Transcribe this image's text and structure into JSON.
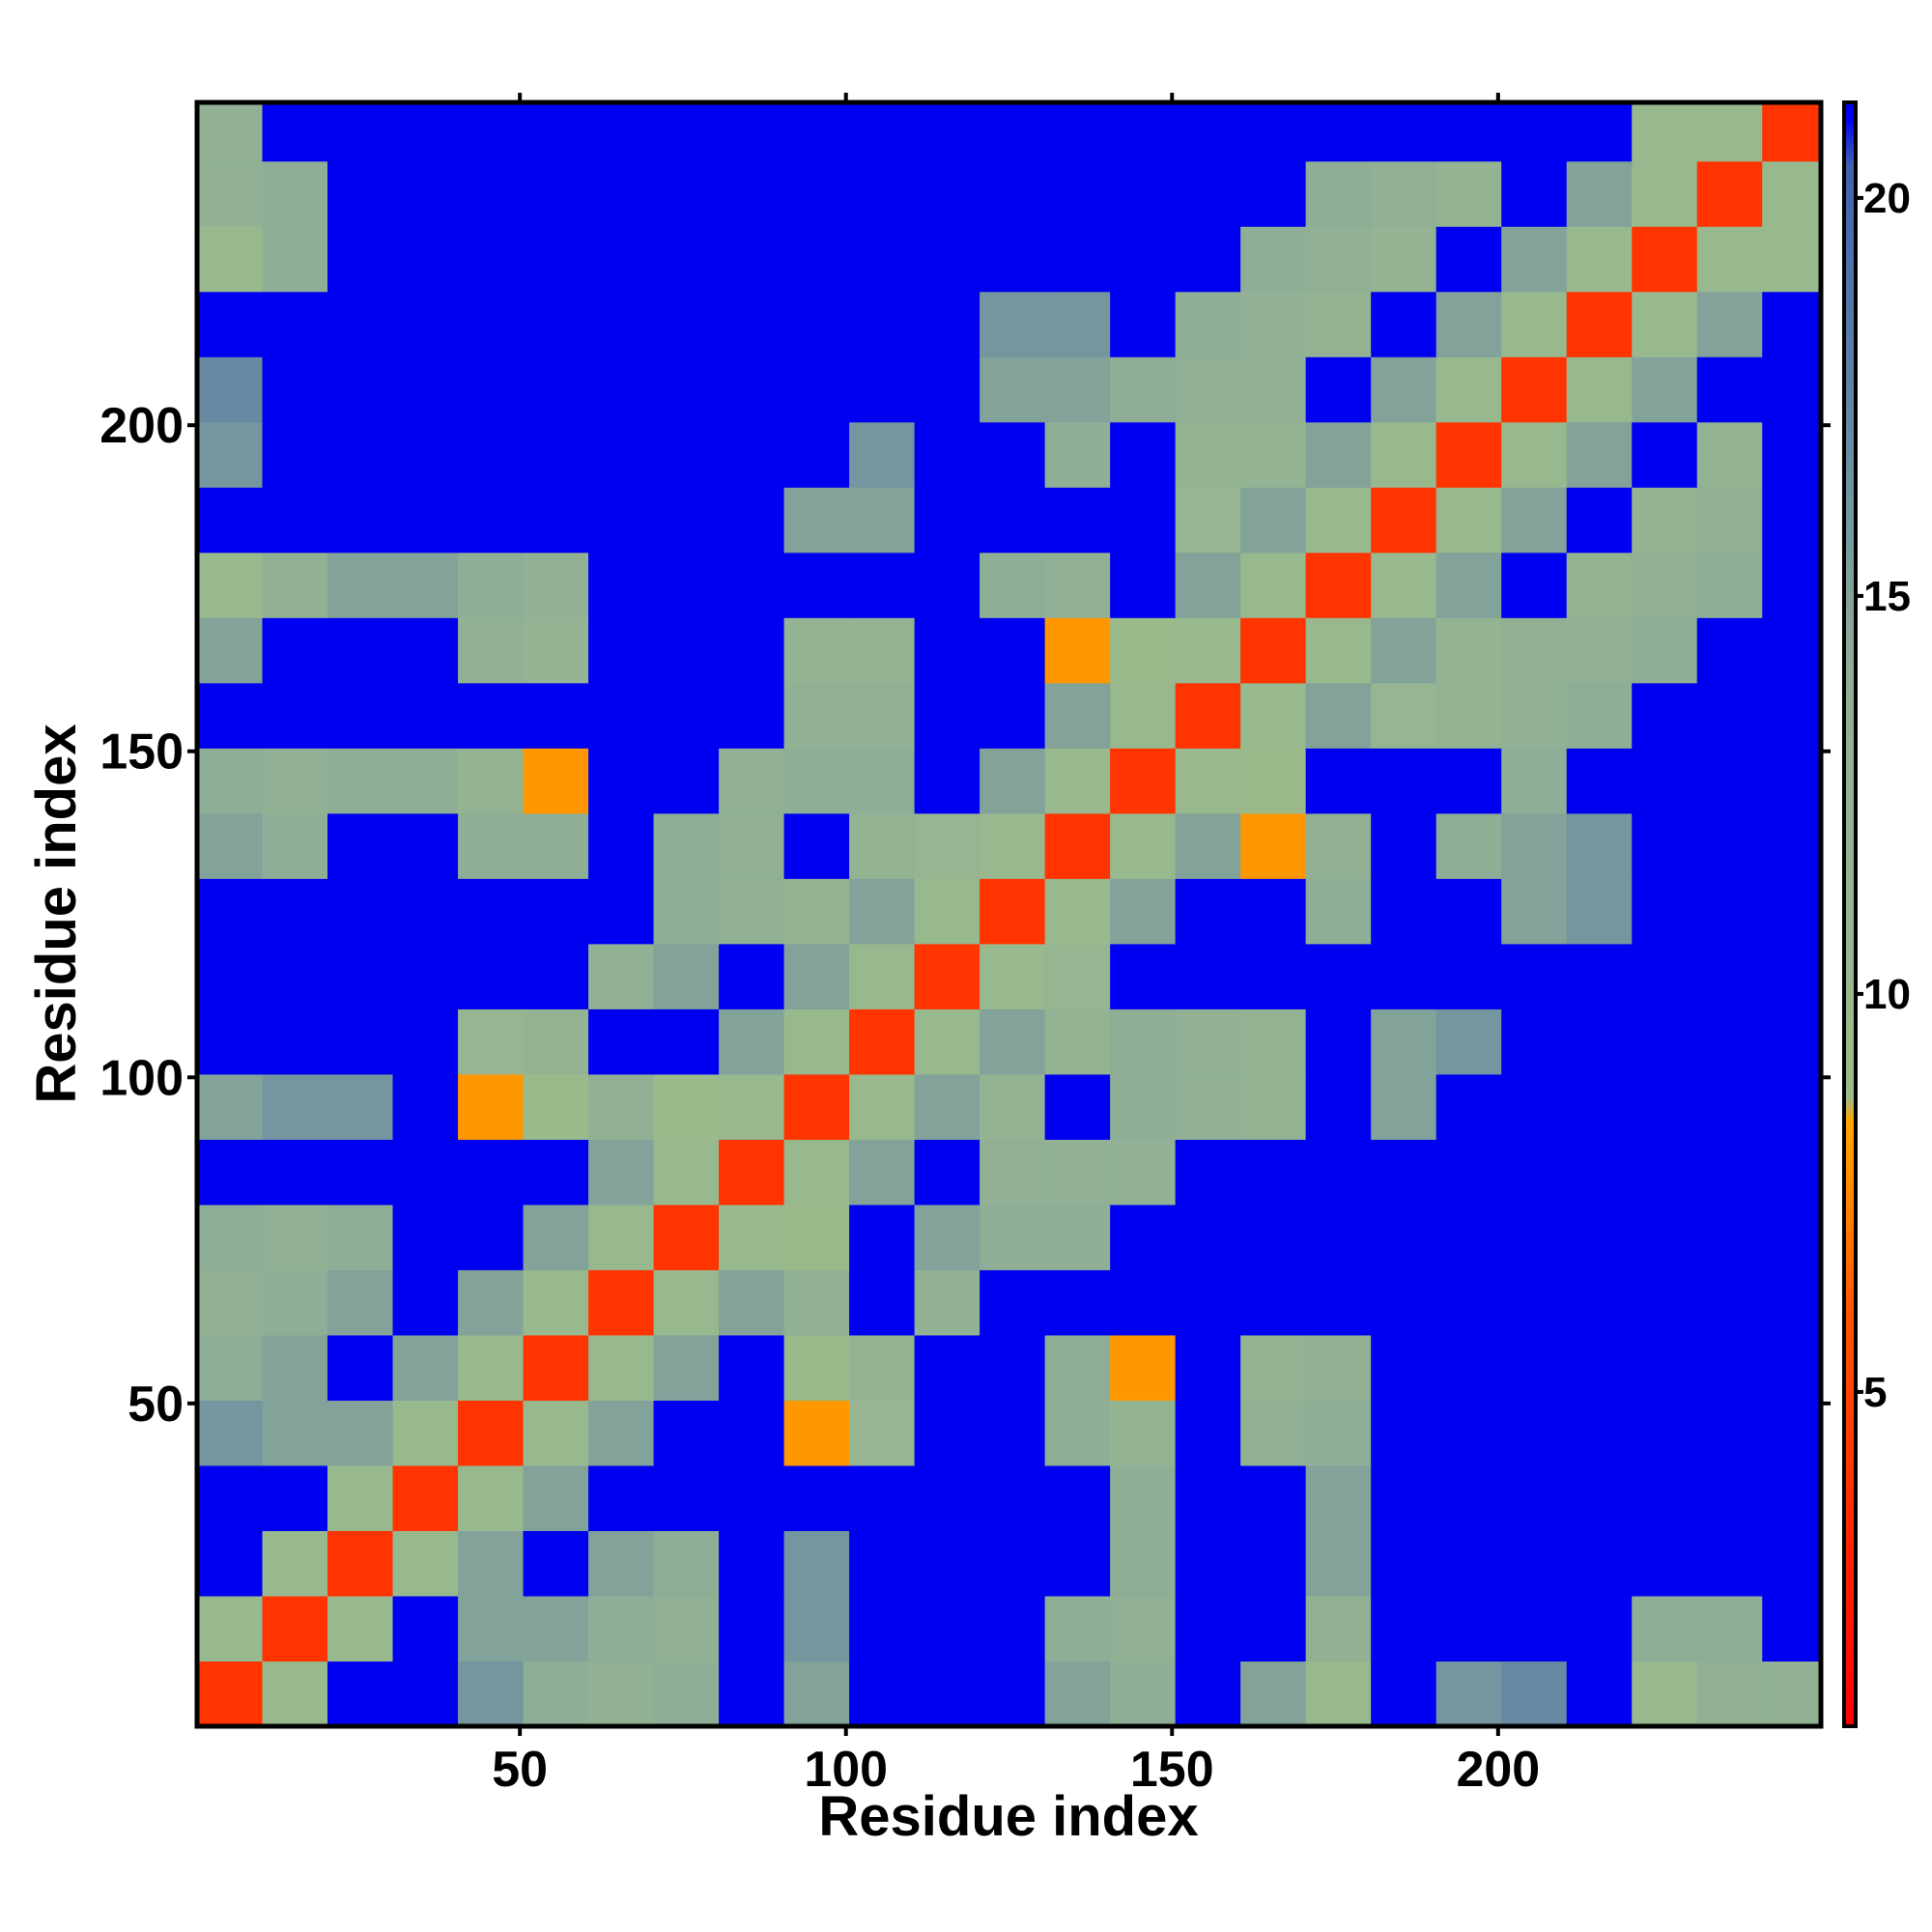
{
  "chart_data": {
    "type": "heatmap",
    "xlabel": "Residue index",
    "ylabel": "Residue index",
    "xlim": [
      0.5,
      249.5
    ],
    "ylim": [
      0.5,
      249.5
    ],
    "xticks": [
      50,
      100,
      150,
      200
    ],
    "yticks": [
      50,
      100,
      150,
      200
    ],
    "xbins": [
      0.5,
      10.5,
      20.5,
      30.5,
      40.5,
      50.5,
      60.5,
      70.5,
      80.5,
      90.5,
      100.5,
      110.5,
      120.5,
      130.5,
      140.5,
      150.5,
      160.5,
      170.5,
      180.5,
      190.5,
      200.5,
      210.5,
      220.5,
      230.5,
      240.5,
      250.5
    ],
    "ybins": [
      0.5,
      10.5,
      20.5,
      30.5,
      40.5,
      50.5,
      60.5,
      70.5,
      80.5,
      90.5,
      100.5,
      110.5,
      120.5,
      130.5,
      140.5,
      150.5,
      160.5,
      170.5,
      180.5,
      190.5,
      200.5,
      210.5,
      220.5,
      230.5,
      240.5,
      250.5
    ],
    "clim": [
      0.8,
      21.2
    ],
    "cticks": [
      5,
      10,
      15,
      20
    ],
    "colorscale": [
      [
        0.8,
        "#ff0000"
      ],
      [
        6,
        "#ff5500"
      ],
      [
        8.4,
        "#ffa500"
      ],
      [
        8.7,
        "#9bbb8b"
      ],
      [
        14,
        "#8fae96"
      ],
      [
        18,
        "#5a7ea6"
      ],
      [
        20.4,
        "#3f62b0"
      ],
      [
        21,
        "#0000f0"
      ]
    ],
    "values": [
      [
        4,
        10,
        21,
        21,
        16,
        14,
        13,
        14,
        21,
        15,
        21,
        21,
        21,
        15,
        14,
        21,
        15,
        10,
        21,
        16,
        17,
        21,
        10,
        13,
        13
      ],
      [
        10,
        4,
        10,
        21,
        15,
        15,
        14,
        13,
        21,
        16,
        21,
        21,
        21,
        14,
        13,
        21,
        21,
        13,
        21,
        21,
        21,
        21,
        14,
        14,
        21
      ],
      [
        21,
        10,
        4,
        10,
        15,
        21,
        15,
        14,
        21,
        16,
        21,
        21,
        21,
        21,
        14,
        21,
        21,
        15,
        21,
        21,
        21,
        21,
        21,
        21,
        21
      ],
      [
        21,
        21,
        10,
        4,
        10,
        15,
        21,
        21,
        21,
        21,
        21,
        21,
        21,
        21,
        14,
        21,
        21,
        15,
        21,
        21,
        21,
        21,
        21,
        21,
        21
      ],
      [
        16,
        15,
        15,
        10,
        4,
        10,
        15,
        21,
        21,
        8,
        11,
        21,
        21,
        14,
        12,
        21,
        13,
        14,
        21,
        21,
        21,
        21,
        21,
        21,
        21
      ],
      [
        14,
        15,
        21,
        15,
        10,
        4,
        10,
        15,
        21,
        9,
        12,
        21,
        21,
        14,
        8,
        21,
        12,
        13,
        21,
        21,
        21,
        21,
        21,
        21,
        21
      ],
      [
        13,
        14,
        15,
        21,
        15,
        10,
        4,
        10,
        15,
        13,
        21,
        13,
        21,
        21,
        21,
        21,
        21,
        21,
        21,
        21,
        21,
        21,
        21,
        21,
        21
      ],
      [
        14,
        13,
        14,
        21,
        21,
        15,
        10,
        4,
        10,
        9,
        21,
        15,
        14,
        14,
        21,
        21,
        21,
        21,
        21,
        21,
        21,
        21,
        21,
        21,
        21
      ],
      [
        21,
        21,
        21,
        21,
        21,
        21,
        15,
        10,
        4,
        10,
        15,
        21,
        13,
        13,
        13,
        21,
        21,
        21,
        21,
        21,
        21,
        21,
        21,
        21,
        21
      ],
      [
        15,
        16,
        16,
        21,
        8,
        9,
        13,
        9,
        10,
        4,
        10,
        15,
        12,
        21,
        14,
        13,
        12,
        21,
        15,
        21,
        21,
        21,
        21,
        21,
        21
      ],
      [
        21,
        21,
        21,
        21,
        11,
        12,
        21,
        21,
        15,
        10,
        4,
        10,
        15,
        12,
        14,
        13,
        12,
        21,
        15,
        16,
        21,
        21,
        21,
        21,
        21
      ],
      [
        21,
        21,
        21,
        21,
        21,
        21,
        13,
        15,
        21,
        15,
        10,
        4,
        10,
        11,
        21,
        21,
        21,
        21,
        21,
        21,
        21,
        21,
        21,
        21,
        21
      ],
      [
        21,
        21,
        21,
        21,
        21,
        21,
        21,
        14,
        13,
        12,
        15,
        10,
        4,
        10,
        15,
        21,
        21,
        14,
        21,
        21,
        15,
        16,
        21,
        21,
        21
      ],
      [
        15,
        14,
        21,
        21,
        14,
        14,
        21,
        14,
        13,
        21,
        12,
        11,
        10,
        4,
        10,
        15,
        8,
        13,
        21,
        14,
        15,
        16,
        21,
        21,
        21
      ],
      [
        14,
        13,
        14,
        14,
        12,
        8,
        21,
        21,
        13,
        14,
        14,
        21,
        15,
        10,
        4,
        10,
        9,
        21,
        21,
        21,
        14,
        21,
        21,
        21,
        21
      ],
      [
        21,
        21,
        21,
        21,
        21,
        21,
        21,
        21,
        21,
        13,
        13,
        21,
        21,
        15,
        10,
        4,
        10,
        15,
        11,
        12,
        13,
        14,
        21,
        21,
        21
      ],
      [
        15,
        21,
        21,
        21,
        13,
        12,
        21,
        21,
        21,
        12,
        12,
        21,
        21,
        8,
        9,
        10,
        4,
        10,
        15,
        12,
        13,
        13,
        14,
        21,
        21
      ],
      [
        10,
        13,
        15,
        15,
        14,
        13,
        21,
        21,
        21,
        21,
        21,
        21,
        14,
        13,
        21,
        15,
        10,
        4,
        10,
        15,
        21,
        12,
        13,
        14,
        21
      ],
      [
        21,
        21,
        21,
        21,
        21,
        21,
        21,
        21,
        21,
        15,
        15,
        21,
        21,
        21,
        21,
        11,
        15,
        10,
        4,
        10,
        15,
        21,
        12,
        13,
        21
      ],
      [
        16,
        21,
        21,
        21,
        21,
        21,
        21,
        21,
        21,
        21,
        16,
        21,
        21,
        14,
        21,
        12,
        12,
        15,
        10,
        4,
        10,
        15,
        21,
        12,
        21
      ],
      [
        17,
        21,
        21,
        21,
        21,
        21,
        21,
        21,
        21,
        21,
        21,
        21,
        15,
        15,
        14,
        13,
        13,
        21,
        15,
        10,
        4,
        10,
        15,
        21,
        21
      ],
      [
        21,
        21,
        21,
        21,
        21,
        21,
        21,
        21,
        21,
        21,
        21,
        21,
        16,
        16,
        21,
        14,
        13,
        12,
        21,
        15,
        10,
        4,
        10,
        15,
        21
      ],
      [
        10,
        14,
        21,
        21,
        21,
        21,
        21,
        21,
        21,
        21,
        21,
        21,
        21,
        21,
        21,
        21,
        14,
        13,
        12,
        21,
        15,
        10,
        4,
        10,
        10
      ],
      [
        13,
        14,
        21,
        21,
        21,
        21,
        21,
        21,
        21,
        21,
        21,
        21,
        21,
        21,
        21,
        21,
        21,
        14,
        13,
        12,
        21,
        15,
        10,
        4,
        10
      ],
      [
        13,
        21,
        21,
        21,
        21,
        21,
        21,
        21,
        21,
        21,
        21,
        21,
        21,
        21,
        21,
        21,
        21,
        21,
        21,
        21,
        21,
        21,
        10,
        10,
        4
      ]
    ]
  }
}
